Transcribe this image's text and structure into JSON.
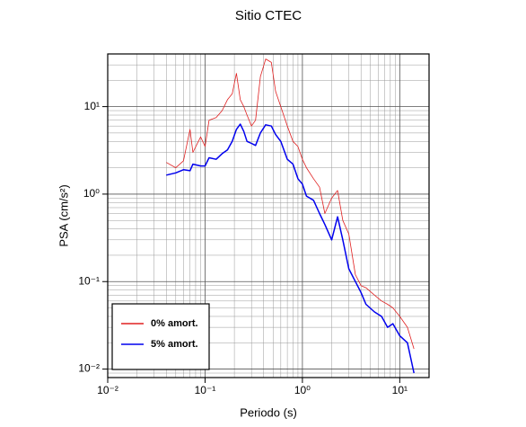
{
  "chart_data": {
    "type": "line",
    "title": "Sitio CTEC",
    "x_label": "Periodo (s)",
    "y_label": "PSA (cm/s²)",
    "log_x": true,
    "log_y": true,
    "grid": true,
    "legend": "lower left",
    "xlim": [
      0.01,
      20
    ],
    "ylim": [
      0.008,
      40
    ],
    "xticks": [
      {
        "value": 0.01,
        "label": "10⁻²"
      },
      {
        "value": 0.1,
        "label": "10⁻¹"
      },
      {
        "value": 1,
        "label": "10⁰"
      },
      {
        "value": 10,
        "label": "10¹"
      }
    ],
    "yticks": [
      {
        "value": 0.01,
        "label": "10⁻²"
      },
      {
        "value": 0.1,
        "label": "10⁻¹"
      },
      {
        "value": 1,
        "label": "10⁰"
      },
      {
        "value": 10,
        "label": "10¹"
      }
    ],
    "xminorticks": [
      0.02,
      0.03,
      0.04,
      0.05,
      0.06,
      0.07,
      0.08,
      0.09,
      0.2,
      0.3,
      0.4,
      0.5,
      0.6,
      0.7,
      0.8,
      0.9,
      2,
      3,
      4,
      5,
      6,
      7,
      8,
      9
    ],
    "yminorticks": [
      0.009,
      0.02,
      0.03,
      0.04,
      0.05,
      0.06,
      0.07,
      0.08,
      0.09,
      0.2,
      0.3,
      0.4,
      0.5,
      0.6,
      0.7,
      0.8,
      0.9,
      2,
      3,
      4,
      5,
      6,
      7,
      8,
      9,
      20,
      30
    ],
    "x": [
      0.04,
      0.05,
      0.06,
      0.07,
      0.075,
      0.09,
      0.1,
      0.11,
      0.13,
      0.15,
      0.17,
      0.19,
      0.21,
      0.23,
      0.25,
      0.27,
      0.3,
      0.33,
      0.37,
      0.42,
      0.48,
      0.53,
      0.6,
      0.7,
      0.8,
      0.9,
      1.0,
      1.1,
      1.3,
      1.5,
      1.7,
      2.0,
      2.3,
      2.6,
      3.0,
      3.5,
      4.0,
      4.5,
      5.5,
      6.5,
      7.5,
      8.5,
      10,
      12,
      14
    ],
    "series": [
      {
        "name": "0% amort.",
        "color": "#e02020",
        "width": 0.8,
        "values": [
          2.3,
          2.0,
          2.4,
          5.5,
          3.0,
          4.5,
          3.5,
          7.0,
          7.5,
          9.0,
          12,
          14,
          24,
          12,
          10,
          8,
          6,
          7,
          22,
          35,
          32,
          15,
          10,
          6,
          4,
          3.5,
          2.5,
          2.0,
          1.5,
          1.2,
          0.6,
          0.9,
          1.1,
          0.5,
          0.35,
          0.12,
          0.09,
          0.085,
          0.07,
          0.06,
          0.055,
          0.05,
          0.04,
          0.03,
          0.017
        ]
      },
      {
        "name": "5% amort.",
        "color": "#0000ee",
        "width": 1.5,
        "values": [
          1.65,
          1.75,
          1.9,
          1.85,
          2.2,
          2.1,
          2.1,
          2.6,
          2.5,
          2.9,
          3.2,
          4.0,
          5.5,
          6.3,
          5.2,
          4.0,
          3.8,
          3.6,
          5.0,
          6.2,
          6.0,
          4.8,
          4.0,
          2.5,
          2.2,
          1.5,
          1.3,
          0.95,
          0.85,
          0.6,
          0.45,
          0.3,
          0.55,
          0.3,
          0.14,
          0.1,
          0.075,
          0.055,
          0.045,
          0.04,
          0.03,
          0.033,
          0.024,
          0.02,
          0.009
        ]
      }
    ]
  }
}
